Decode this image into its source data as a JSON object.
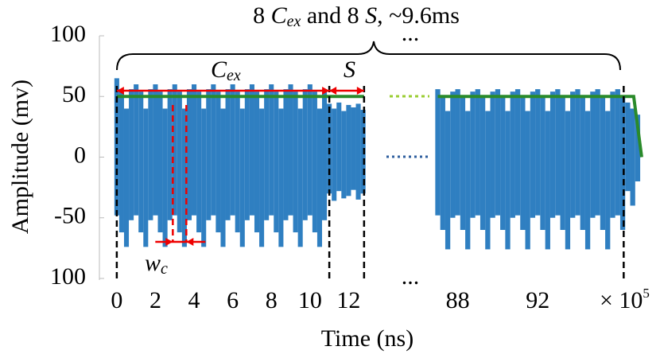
{
  "chart_data": {
    "type": "signal",
    "title": [
      "8",
      "C",
      "ex",
      "and 8",
      "S",
      ", ~9.6ms"
    ],
    "x_label": "Time (ns)",
    "y_label": "Amplitude (mv)",
    "ylim": [
      -100,
      100
    ],
    "yticks": [
      100,
      50,
      0,
      -50,
      {
        "value": -100,
        "label": "100"
      }
    ],
    "x_multiplier": {
      "base": "× 10",
      "exp": "5"
    },
    "annotations": {
      "cex": [
        "C",
        "ex"
      ],
      "s": "S",
      "wc": [
        "w",
        "c"
      ],
      "ellipsis": "..."
    },
    "signal_color": "#2f7fc1",
    "threshold_color": "#2a8a2a",
    "panels": [
      {
        "xlim": [
          -0.9,
          13.3
        ],
        "xticks": [
          0,
          2,
          4,
          6,
          8,
          10,
          12
        ],
        "x": [
          0,
          0.25,
          0.5,
          0.75,
          1,
          1.25,
          1.5,
          1.75,
          2,
          2.25,
          2.5,
          2.75,
          3,
          3.25,
          3.5,
          3.75,
          4,
          4.25,
          4.5,
          4.75,
          5,
          5.25,
          5.5,
          5.75,
          6,
          6.25,
          6.5,
          6.75,
          7,
          7.25,
          7.5,
          7.75,
          8,
          8.25,
          8.5,
          8.75,
          9,
          9.25,
          9.5,
          9.75,
          10,
          10.25,
          10.5,
          10.75,
          11,
          11.25,
          11.5,
          11.75,
          12,
          12.25,
          12.5,
          12.75
        ],
        "upper": [
          65,
          54,
          40,
          56,
          60,
          54,
          40,
          56,
          60,
          54,
          40,
          56,
          60,
          54,
          40,
          56,
          60,
          54,
          40,
          56,
          60,
          54,
          40,
          56,
          60,
          54,
          40,
          56,
          60,
          54,
          40,
          56,
          60,
          54,
          40,
          56,
          60,
          54,
          40,
          56,
          60,
          54,
          40,
          56,
          44,
          40,
          45,
          38,
          43,
          41,
          44,
          39
        ],
        "lower": [
          -48,
          -62,
          -74,
          -52,
          -48,
          -62,
          -74,
          -52,
          -48,
          -62,
          -74,
          -52,
          -48,
          -62,
          -74,
          -52,
          -48,
          -62,
          -74,
          -52,
          -48,
          -62,
          -74,
          -52,
          -48,
          -62,
          -74,
          -52,
          -48,
          -62,
          -74,
          -52,
          -48,
          -62,
          -74,
          -52,
          -48,
          -62,
          -74,
          -52,
          -48,
          -62,
          -74,
          -52,
          -30,
          -36,
          -28,
          -34,
          -32,
          -27,
          -35,
          -30
        ],
        "threshold": {
          "x": [
            0,
            12.8
          ],
          "y": [
            50,
            50
          ]
        }
      },
      {
        "xlim": [
          86.9,
          97.4
        ],
        "xticks": [
          88,
          92
        ],
        "x": [
          87,
          87.25,
          87.5,
          87.75,
          88,
          88.25,
          88.5,
          88.75,
          89,
          89.25,
          89.5,
          89.75,
          90,
          90.25,
          90.5,
          90.75,
          91,
          91.25,
          91.5,
          91.75,
          92,
          92.25,
          92.5,
          92.75,
          93,
          93.25,
          93.5,
          93.75,
          94,
          94.25,
          94.5,
          94.75,
          95,
          95.25,
          95.5,
          95.75,
          96,
          96.25,
          96.5,
          96.75,
          97
        ],
        "upper": [
          56,
          50,
          38,
          54,
          56,
          50,
          38,
          54,
          56,
          50,
          38,
          54,
          56,
          50,
          38,
          54,
          56,
          50,
          38,
          54,
          56,
          50,
          38,
          54,
          56,
          50,
          38,
          54,
          56,
          50,
          38,
          54,
          56,
          50,
          38,
          54,
          56,
          50,
          45,
          40,
          35
        ],
        "lower": [
          -48,
          -60,
          -76,
          -50,
          -48,
          -60,
          -76,
          -50,
          -48,
          -60,
          -76,
          -50,
          -48,
          -60,
          -76,
          -50,
          -48,
          -60,
          -76,
          -50,
          -48,
          -60,
          -76,
          -50,
          -48,
          -60,
          -76,
          -50,
          -48,
          -60,
          -76,
          -50,
          -48,
          -60,
          -76,
          -50,
          -48,
          -60,
          -28,
          -40,
          -20
        ],
        "threshold": {
          "x": [
            87,
            96.8,
            97.2
          ],
          "y": [
            50,
            50,
            0
          ]
        }
      }
    ],
    "boundaries": [
      0,
      11,
      12.8,
      96.3
    ],
    "wc_bounds": [
      2.9,
      3.6
    ]
  }
}
